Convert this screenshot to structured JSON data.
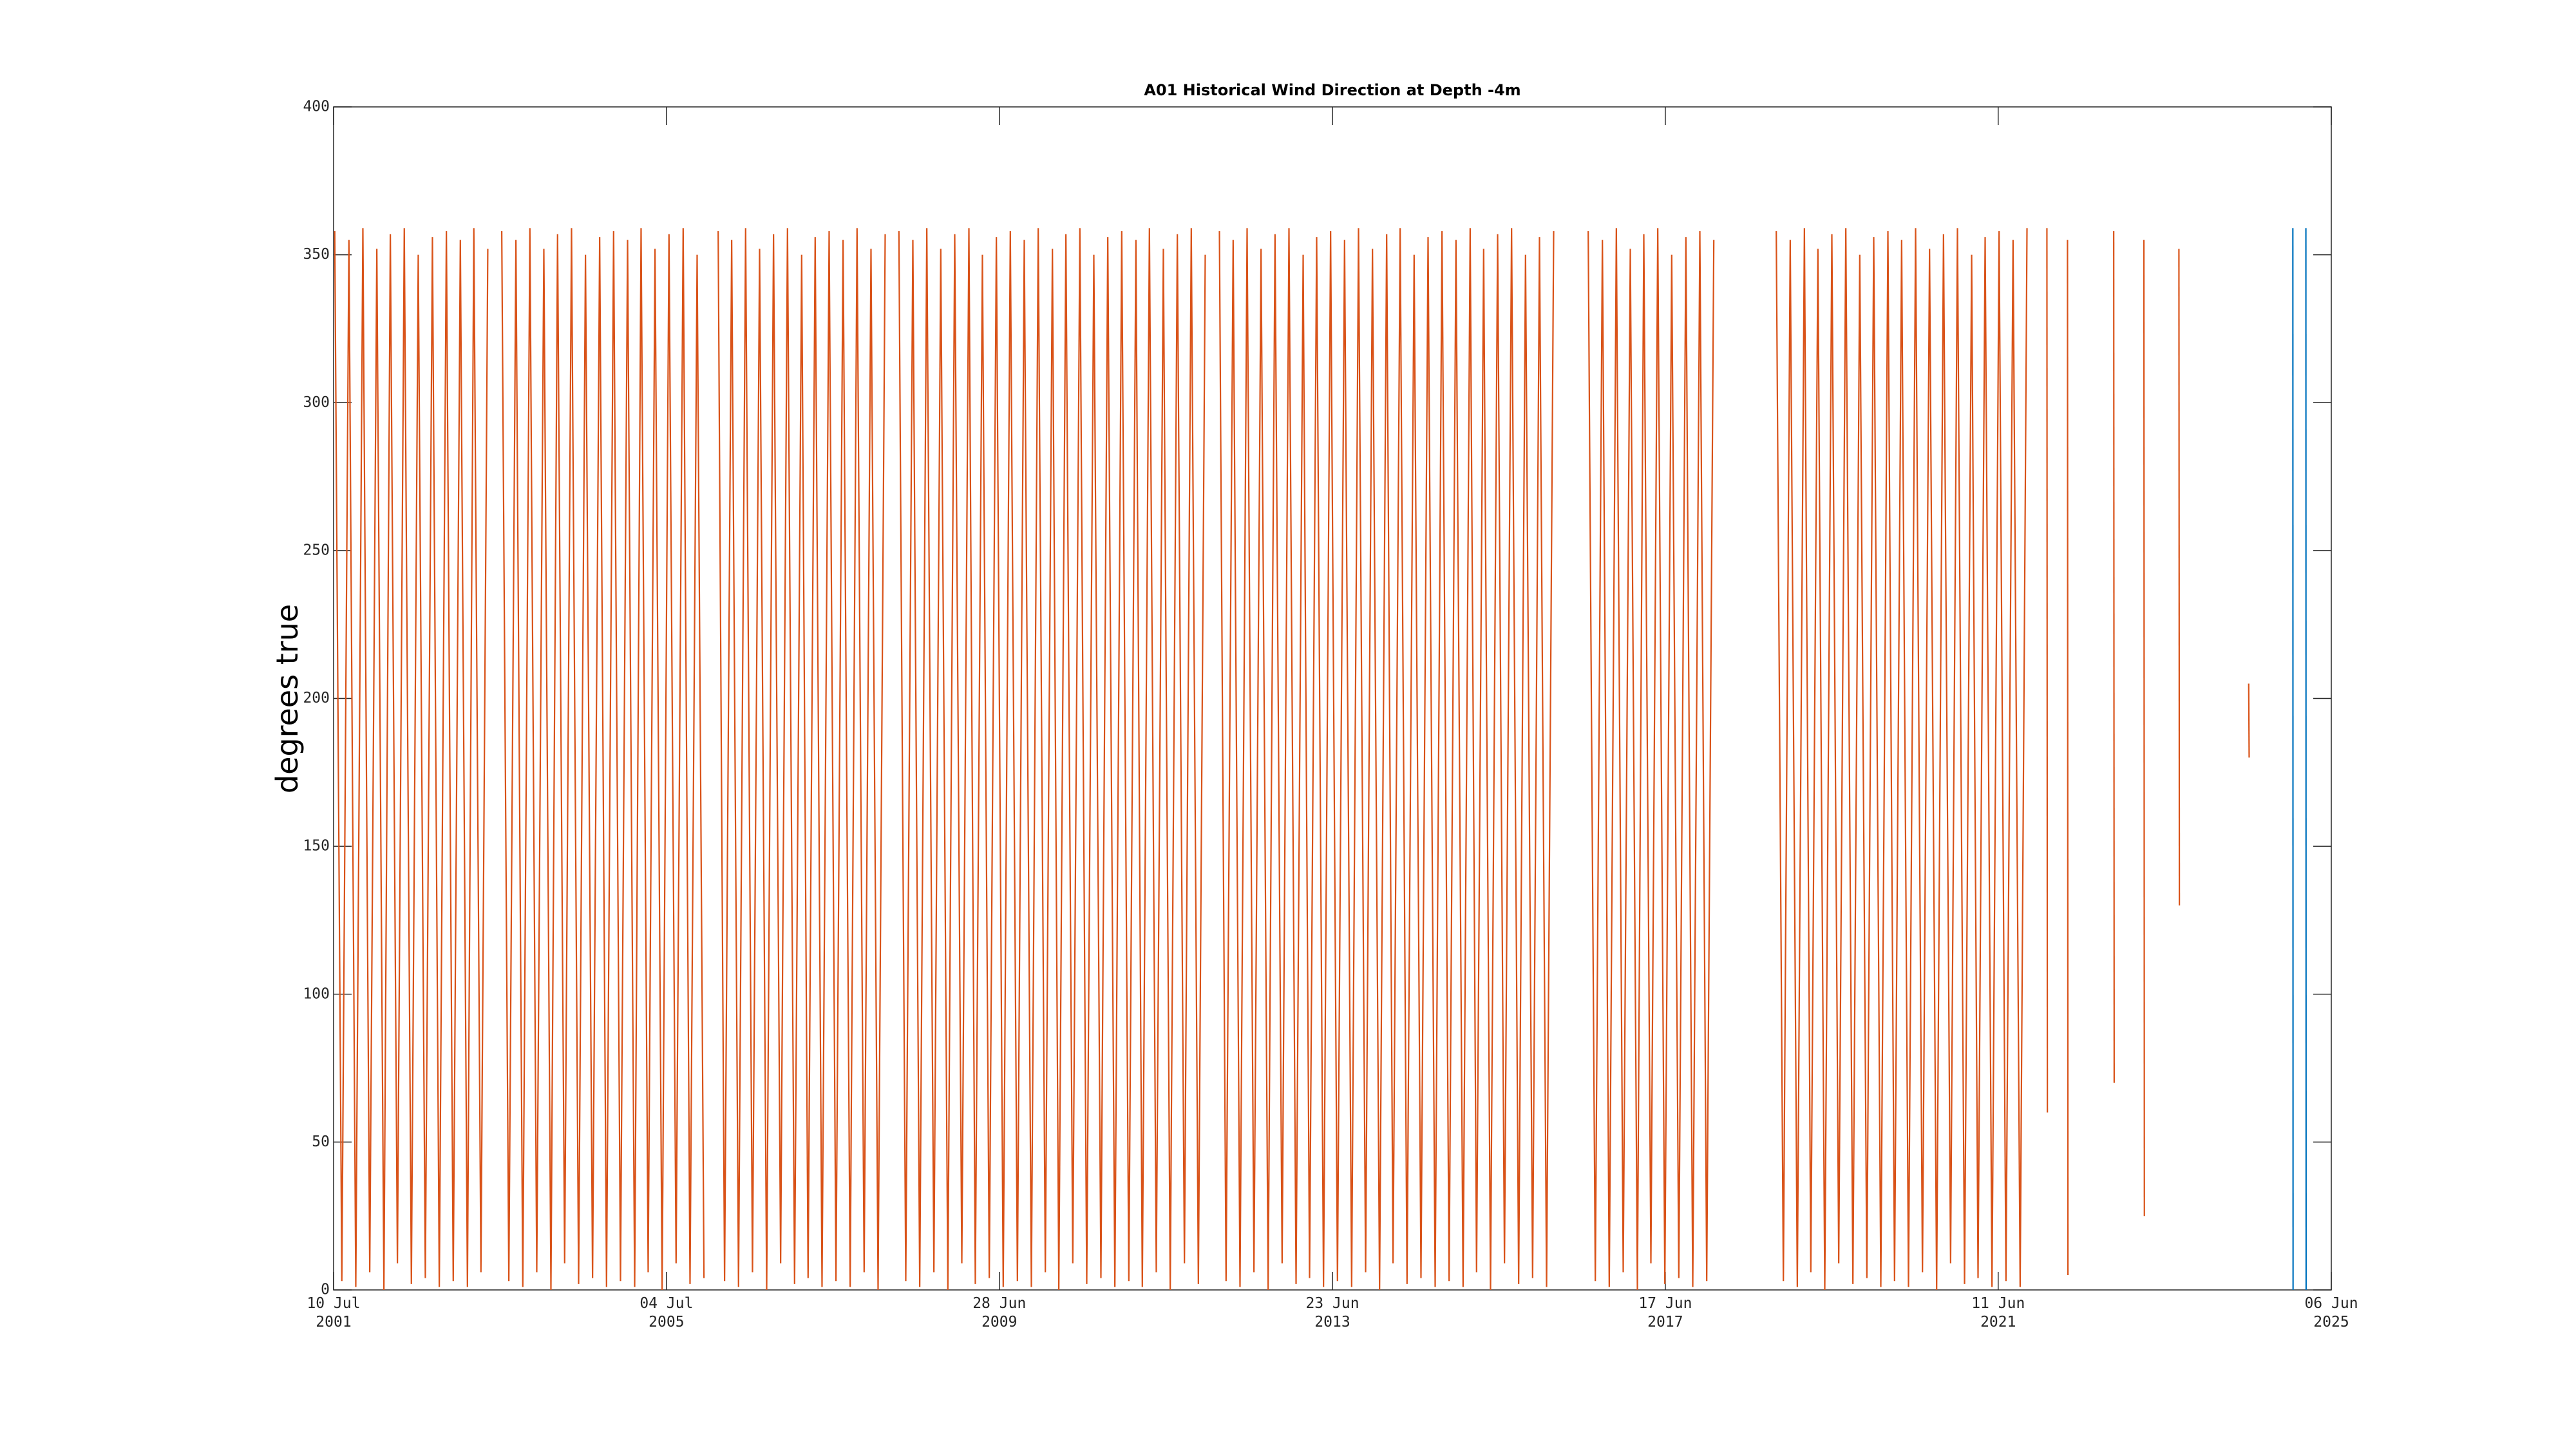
{
  "chart_data": {
    "type": "line",
    "title": "A01 Historical Wind Direction at Depth -4m",
    "ylabel": "degrees true",
    "xlim": [
      "2001-07-10",
      "2025-06-06"
    ],
    "xticks": [
      {
        "value": "2001-07-10",
        "label": [
          "10 Jul",
          "2001"
        ]
      },
      {
        "value": "2005-07-04",
        "label": [
          "04 Jul",
          "2005"
        ]
      },
      {
        "value": "2009-06-28",
        "label": [
          "28 Jun",
          "2009"
        ]
      },
      {
        "value": "2013-06-23",
        "label": [
          "23 Jun",
          "2013"
        ]
      },
      {
        "value": "2017-06-17",
        "label": [
          "17 Jun",
          "2017"
        ]
      },
      {
        "value": "2021-06-11",
        "label": [
          "11 Jun",
          "2021"
        ]
      },
      {
        "value": "2025-06-06",
        "label": [
          "06 Jun",
          "2025"
        ]
      }
    ],
    "ylim": [
      0,
      400
    ],
    "yticks": [
      0,
      50,
      100,
      150,
      200,
      250,
      300,
      350,
      400
    ],
    "grid": false,
    "series": [
      {
        "color": "#d95319",
        "x": [
          "2001-07-15",
          "2001-08-15",
          "2001-09-15",
          "2001-10-15",
          "2001-11-15",
          "2001-12-15",
          "2002-01-15",
          "2002-02-15",
          "2002-03-15",
          "2002-04-15",
          "2002-05-15",
          "2002-06-15",
          "2002-07-15",
          "2002-08-15",
          "2002-09-15",
          "2002-10-15",
          "2002-11-15",
          "2002-12-15",
          "2003-01-15",
          "2003-02-15",
          "2003-03-15",
          "2003-04-15",
          "2003-05-15",
          "2003-06-15",
          "2003-07-15",
          "2003-08-15",
          "2003-09-15",
          "2003-10-15",
          "2003-11-15",
          "2003-12-15",
          "2004-01-15",
          "2004-02-15",
          "2004-03-15",
          "2004-04-15",
          "2004-05-15",
          "2004-06-15",
          "2004-07-15",
          "2004-08-15",
          "2004-09-15",
          "2004-10-15",
          "2004-11-15",
          "2004-12-15",
          "2005-01-15",
          "2005-02-15",
          "2005-03-15",
          "2005-04-15",
          "2005-05-15",
          "2005-06-15",
          "2005-07-15",
          "2005-08-15",
          "2005-09-15",
          "2005-10-15",
          "2005-11-15",
          "2005-12-15",
          "2006-01-15",
          "2006-02-15",
          "2006-03-15",
          "2006-04-15",
          "2006-05-15",
          "2006-06-15",
          "2006-07-15",
          "2006-08-15",
          "2006-09-15",
          "2006-10-15",
          "2006-11-15",
          "2006-12-15",
          "2007-01-15",
          "2007-02-15",
          "2007-03-15",
          "2007-04-15",
          "2007-05-15",
          "2007-06-15",
          "2007-07-15",
          "2007-08-15",
          "2007-09-15",
          "2007-10-15",
          "2007-11-15",
          "2007-12-15",
          "2008-01-15",
          "2008-02-15",
          "2008-03-15",
          "2008-04-15",
          "2008-05-15",
          "2008-06-15",
          "2008-07-15",
          "2008-08-15",
          "2008-09-15",
          "2008-10-15",
          "2008-11-15",
          "2008-12-15",
          "2009-01-15",
          "2009-02-15",
          "2009-03-15",
          "2009-04-15",
          "2009-05-15",
          "2009-06-15",
          "2009-07-15",
          "2009-08-15",
          "2009-09-15",
          "2009-10-15",
          "2009-11-15",
          "2009-12-15",
          "2010-01-15",
          "2010-02-15",
          "2010-03-15",
          "2010-04-15",
          "2010-05-15",
          "2010-06-15",
          "2010-07-15",
          "2010-08-15",
          "2010-09-15",
          "2010-10-15",
          "2010-11-15",
          "2010-12-15",
          "2011-01-15",
          "2011-02-15",
          "2011-03-15",
          "2011-04-15",
          "2011-05-15",
          "2011-06-15",
          "2011-07-15",
          "2011-08-15",
          "2011-09-15",
          "2011-10-15",
          "2011-11-15",
          "2011-12-15",
          "2012-01-15",
          "2012-02-15",
          "2012-03-15",
          "2012-04-15",
          "2012-05-15",
          "2012-06-15",
          "2012-07-15",
          "2012-08-15",
          "2012-09-15",
          "2012-10-15",
          "2012-11-15",
          "2012-12-15",
          "2013-01-15",
          "2013-02-15",
          "2013-03-15",
          "2013-04-15",
          "2013-05-15",
          "2013-06-15",
          "2013-07-15",
          "2013-08-15",
          "2013-09-15",
          "2013-10-15",
          "2013-11-15",
          "2013-12-15",
          "2014-01-15",
          "2014-02-15",
          "2014-03-15",
          "2014-04-15",
          "2014-05-15",
          "2014-06-15",
          "2014-07-15",
          "2014-08-15",
          "2014-09-15",
          "2014-10-15",
          "2014-11-15",
          "2014-12-15",
          "2015-01-15",
          "2015-02-15",
          "2015-03-15",
          "2015-04-15",
          "2015-05-15",
          "2015-06-15",
          "2015-07-15",
          "2015-08-15",
          "2015-09-15",
          "2015-10-15",
          "2015-11-15",
          "2015-12-15",
          "2016-01-15",
          "2016-02-15",
          "2016-04-15",
          "2016-07-15",
          "2016-08-15",
          "2016-09-15",
          "2016-10-15",
          "2016-11-15",
          "2016-12-15",
          "2017-01-15",
          "2017-02-15",
          "2017-03-15",
          "2017-04-15",
          "2017-05-15",
          "2017-06-15",
          "2017-07-15",
          "2017-08-15",
          "2017-09-15",
          "2017-10-15",
          "2017-11-15",
          "2017-12-15",
          "2018-01-15",
          "2018-04-15",
          "2018-10-15",
          "2018-11-15",
          "2018-12-15",
          "2019-01-15",
          "2019-02-15",
          "2019-03-15",
          "2019-04-15",
          "2019-05-15",
          "2019-06-15",
          "2019-07-15",
          "2019-08-15",
          "2019-09-15",
          "2019-10-15",
          "2019-11-15",
          "2019-12-15",
          "2020-01-15",
          "2020-02-15",
          "2020-03-15",
          "2020-04-15",
          "2020-05-15",
          "2020-06-15",
          "2020-07-15",
          "2020-08-15",
          "2020-09-15",
          "2020-10-15",
          "2020-11-15",
          "2020-12-15",
          "2021-01-15",
          "2021-02-15",
          "2021-03-15",
          "2021-04-15",
          "2021-05-15",
          "2021-06-15",
          "2021-07-15",
          "2021-08-15",
          "2021-09-15",
          "2021-10-15",
          "2021-12-15",
          "2022-01-10",
          "2022-01-12",
          "2022-02-15",
          "2022-04-10",
          "2022-04-12",
          "2022-05-15",
          "2022-10-29",
          "2022-10-31",
          "2022-11-15",
          "2023-03-10",
          "2023-03-12",
          "2023-04-15",
          "2023-08-10",
          "2023-08-12",
          "2023-09-15",
          "2024-06-10",
          "2024-06-12"
        ],
        "values": [
          358,
          3,
          355,
          1,
          359,
          6,
          352,
          0,
          357,
          9,
          359,
          2,
          350,
          4,
          356,
          1,
          358,
          3,
          355,
          1,
          359,
          6,
          352,
          null,
          358,
          3,
          355,
          1,
          359,
          6,
          352,
          0,
          357,
          9,
          359,
          2,
          350,
          4,
          356,
          1,
          358,
          3,
          355,
          1,
          359,
          6,
          352,
          0,
          357,
          9,
          359,
          2,
          350,
          4,
          null,
          358,
          3,
          355,
          1,
          359,
          6,
          352,
          0,
          357,
          9,
          359,
          2,
          350,
          4,
          356,
          1,
          358,
          3,
          355,
          1,
          359,
          6,
          352,
          0,
          357,
          null,
          358,
          3,
          355,
          1,
          359,
          6,
          352,
          0,
          357,
          9,
          359,
          2,
          350,
          4,
          356,
          1,
          358,
          3,
          355,
          1,
          359,
          6,
          352,
          0,
          357,
          9,
          359,
          2,
          350,
          4,
          356,
          1,
          358,
          3,
          355,
          1,
          359,
          6,
          352,
          0,
          357,
          9,
          359,
          2,
          350,
          null,
          358,
          3,
          355,
          1,
          359,
          6,
          352,
          0,
          357,
          9,
          359,
          2,
          350,
          4,
          356,
          1,
          358,
          3,
          355,
          1,
          359,
          6,
          352,
          0,
          357,
          9,
          359,
          2,
          350,
          4,
          356,
          1,
          358,
          3,
          355,
          1,
          359,
          6,
          352,
          0,
          357,
          9,
          359,
          2,
          350,
          4,
          356,
          1,
          358,
          null,
          358,
          3,
          355,
          1,
          359,
          6,
          352,
          0,
          357,
          9,
          359,
          2,
          350,
          4,
          356,
          1,
          358,
          3,
          355,
          null,
          358,
          3,
          355,
          1,
          359,
          6,
          352,
          0,
          357,
          9,
          359,
          2,
          350,
          4,
          356,
          1,
          358,
          3,
          355,
          1,
          359,
          6,
          352,
          0,
          357,
          9,
          359,
          2,
          350,
          4,
          356,
          1,
          358,
          3,
          355,
          1,
          359,
          null,
          359,
          60,
          null,
          355,
          5,
          null,
          358,
          70,
          null,
          355,
          25,
          null,
          352,
          130,
          null,
          205,
          180
        ]
      },
      {
        "color": "#0072bd",
        "x": [
          "2024-12-20",
          "2024-12-21",
          "2025-01-20",
          "2025-02-15",
          "2025-02-16"
        ],
        "values": [
          359,
          0,
          null,
          359,
          0
        ]
      }
    ]
  }
}
